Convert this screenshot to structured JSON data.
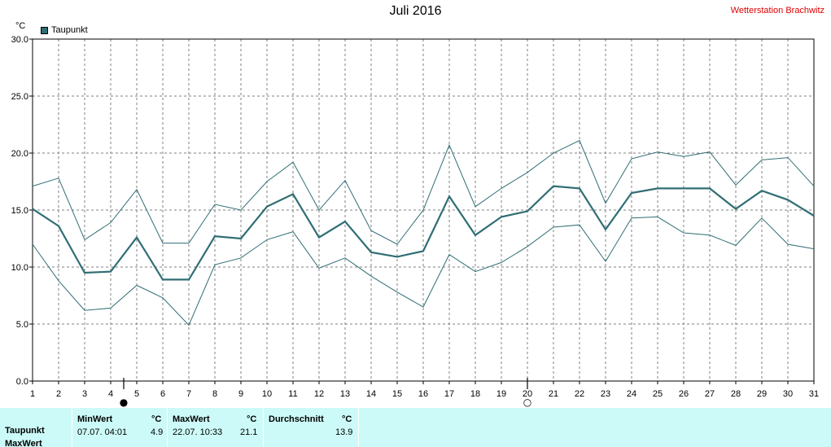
{
  "header": {
    "title": "Juli 2016",
    "station": "Wetterstation Brachwitz",
    "unit": "°C",
    "legend_label": "Taupunkt"
  },
  "chart_data": {
    "type": "line",
    "title": "Juli 2016",
    "ylabel": "°C",
    "xlabel": "",
    "ylim": [
      0,
      30
    ],
    "xlim": [
      1,
      31
    ],
    "grid": true,
    "legend_position": "top-left",
    "x": [
      1,
      2,
      3,
      4,
      5,
      6,
      7,
      8,
      9,
      10,
      11,
      12,
      13,
      14,
      15,
      16,
      17,
      18,
      19,
      20,
      21,
      22,
      23,
      24,
      25,
      26,
      27,
      28,
      29,
      30,
      31
    ],
    "x_tick_labels": [
      "1",
      "2",
      "3",
      "4",
      "5",
      "6",
      "7",
      "8",
      "9",
      "10",
      "11",
      "12",
      "13",
      "14",
      "15",
      "16",
      "17",
      "18",
      "19",
      "20",
      "21",
      "22",
      "23",
      "24",
      "25",
      "26",
      "27",
      "28",
      "29",
      "30",
      "31"
    ],
    "y_ticks": [
      0,
      5,
      10,
      15,
      20,
      25,
      30
    ],
    "y_tick_labels": [
      "0.0",
      "5.0",
      "10.0",
      "15.0",
      "20.0",
      "25.0",
      "30.0"
    ],
    "series": [
      {
        "name": "Taupunkt",
        "color": "#2f6e74",
        "values": [
          15.1,
          13.6,
          9.5,
          9.6,
          12.6,
          8.9,
          8.9,
          12.7,
          12.5,
          15.3,
          16.4,
          12.6,
          14.0,
          11.3,
          10.9,
          11.4,
          16.2,
          12.8,
          14.4,
          14.9,
          17.1,
          16.9,
          13.3,
          16.5,
          16.9,
          16.9,
          16.9,
          15.1,
          16.7,
          15.9,
          14.5
        ]
      },
      {
        "color": "#2f6e74",
        "values": [
          17.1,
          17.8,
          12.4,
          13.9,
          16.8,
          12.1,
          12.1,
          15.5,
          15.0,
          17.5,
          19.2,
          15.0,
          17.6,
          13.2,
          12.0,
          15.0,
          20.7,
          15.3,
          16.9,
          18.3,
          20.0,
          21.1,
          15.6,
          19.5,
          20.1,
          19.7,
          20.1,
          17.2,
          19.4,
          19.6,
          17.1
        ]
      },
      {
        "color": "#2f6e74",
        "values": [
          12.0,
          8.8,
          6.2,
          6.4,
          8.4,
          7.3,
          4.9,
          10.2,
          10.8,
          12.4,
          13.1,
          9.9,
          10.8,
          9.2,
          7.8,
          6.5,
          11.1,
          9.6,
          10.4,
          11.8,
          13.5,
          13.7,
          10.5,
          14.3,
          14.4,
          13.0,
          12.8,
          11.9,
          14.3,
          12.0,
          11.6
        ]
      }
    ],
    "moon_phases": [
      {
        "day": 4.5,
        "symbol": "●"
      },
      {
        "day": 20,
        "symbol": "○"
      }
    ]
  },
  "stats": {
    "row_label": "Taupunkt",
    "row_label_2": "MaxWert",
    "min": {
      "header": "MinWert",
      "unit": "°C",
      "time": "07.07.  04:01",
      "value": "4.9"
    },
    "max": {
      "header": "MaxWert",
      "unit": "°C",
      "time": "22.07.  10:33",
      "value": "21.1"
    },
    "avg": {
      "header": "Durchschnitt",
      "unit": "°C",
      "value": "13.9"
    }
  }
}
